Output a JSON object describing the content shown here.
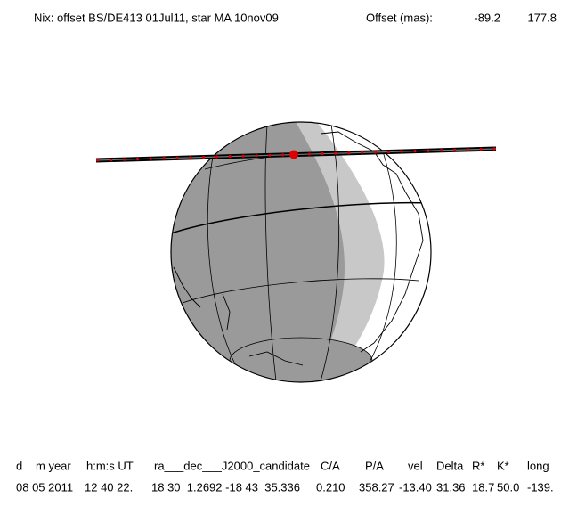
{
  "header": {
    "title": "Nix: offset BS/DE413 01Jul11, star MA 10nov09",
    "offset_label": "Offset (mas):",
    "offset_x": "-89.2",
    "offset_y": "177.8"
  },
  "table": {
    "columns": [
      "d",
      "m year",
      "h:m:s UT",
      "ra___dec___J2000_candidate",
      "C/A",
      "P/A",
      "vel",
      "Delta",
      "R*",
      "K*",
      "long"
    ],
    "row": [
      "08 05 2011",
      "12 40 22.",
      "18 30  1.2692 -18 43  35.336",
      "0.210",
      "358.27",
      "-13.40",
      "31.36",
      "18.7",
      "50.0",
      "-139."
    ]
  }
}
